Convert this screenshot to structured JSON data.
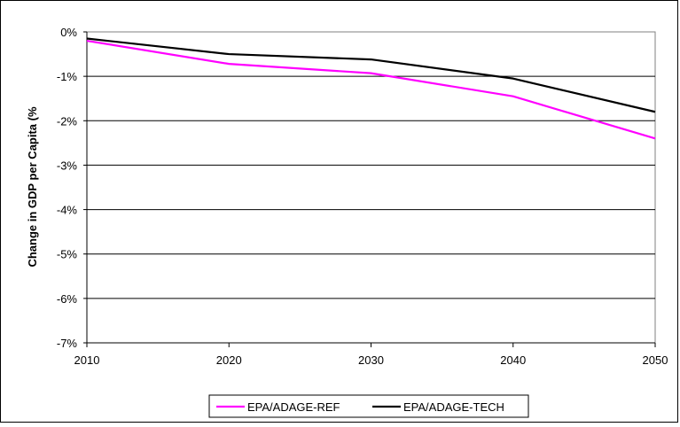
{
  "chart_data": {
    "type": "line",
    "title": "",
    "xlabel": "",
    "ylabel": "Change in GDP per Capita (%",
    "x": [
      2010,
      2020,
      2030,
      2040,
      2050
    ],
    "x_tick_labels": [
      "2010",
      "2020",
      "2030",
      "2040",
      "2050"
    ],
    "ylim": [
      -7,
      0
    ],
    "y_ticks": [
      0,
      -1,
      -2,
      -3,
      -4,
      -5,
      -6,
      -7
    ],
    "y_tick_labels": [
      "0%",
      "-1%",
      "-2%",
      "-3%",
      "-4%",
      "-5%",
      "-6%",
      "-7%"
    ],
    "grid": "horizontal",
    "legend_position": "bottom",
    "series": [
      {
        "name": "EPA/ADAGE-REF",
        "color": "#ff00ff",
        "values": [
          -0.2,
          -0.72,
          -0.93,
          -1.45,
          -2.4
        ]
      },
      {
        "name": "EPA/ADAGE-TECH",
        "color": "#000000",
        "values": [
          -0.15,
          -0.5,
          -0.62,
          -1.05,
          -1.8
        ]
      }
    ]
  }
}
